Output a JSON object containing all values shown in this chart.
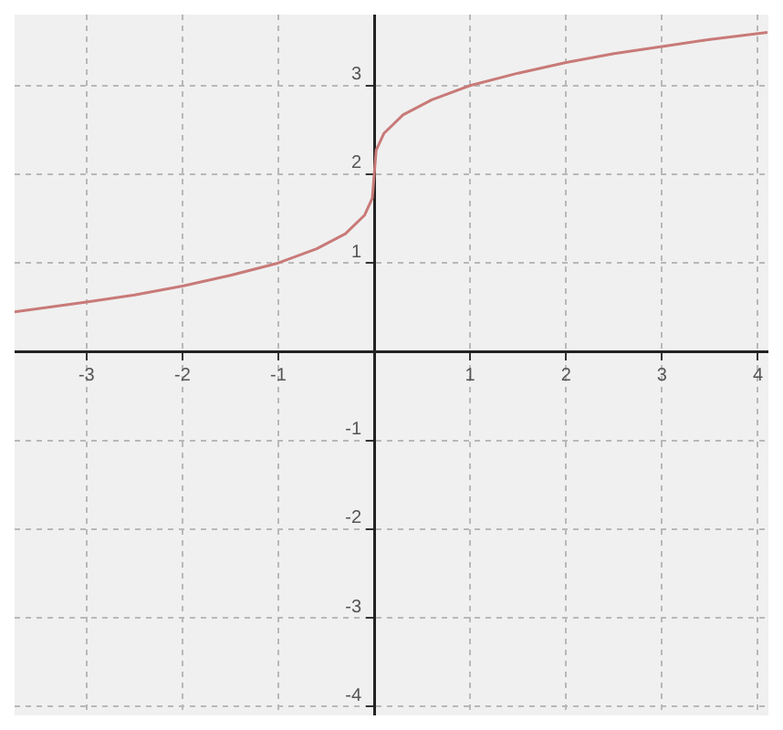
{
  "chart_data": {
    "type": "line",
    "x": [
      -3.75,
      -3,
      -2.5,
      -2,
      -1.5,
      -1,
      -0.6,
      -0.3,
      -0.1,
      -0.02,
      0,
      0.02,
      0.1,
      0.3,
      0.6,
      1,
      1.5,
      2,
      2.5,
      3,
      3.5,
      4.1
    ],
    "series": [
      {
        "color": "#c87a78",
        "values": [
          0.45,
          0.56,
          0.64,
          0.74,
          0.86,
          1.0,
          1.16,
          1.33,
          1.54,
          1.73,
          2.0,
          2.27,
          2.46,
          2.67,
          2.84,
          3.0,
          3.14,
          3.26,
          3.36,
          3.44,
          3.52,
          3.6
        ]
      }
    ],
    "xlim": [
      -3.75,
      4.1
    ],
    "ylim": [
      -4.1,
      3.8
    ],
    "xticks": [
      -3,
      -2,
      -1,
      {
        "value": 0,
        "label": null
      },
      1,
      2,
      3,
      4
    ],
    "yticks": [
      -4,
      -3,
      -2,
      -1,
      {
        "value": 0,
        "label": null
      },
      1,
      2,
      3
    ],
    "grid": true,
    "marker": "none",
    "line_style": "solid",
    "legend": false
  }
}
